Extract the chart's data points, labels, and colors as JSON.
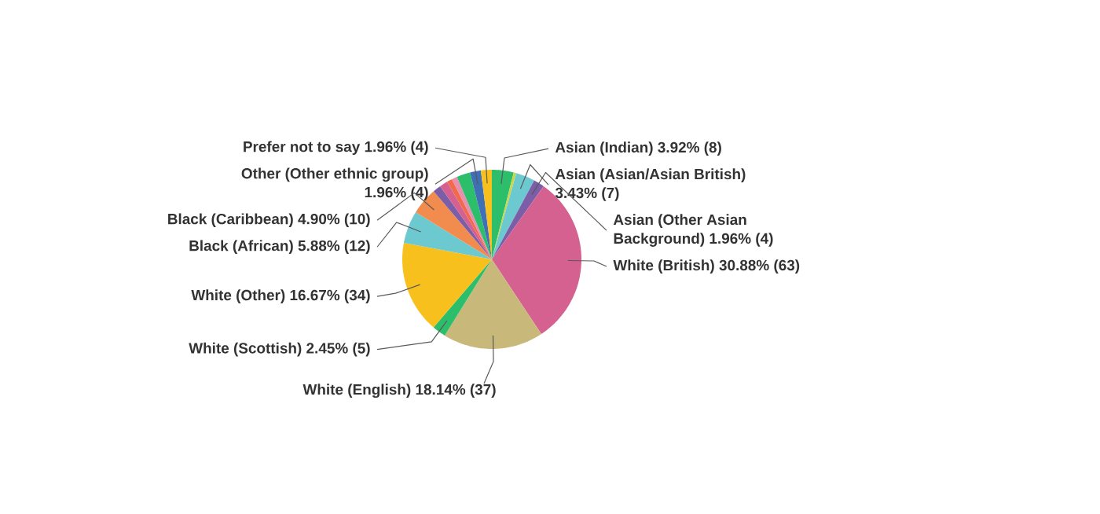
{
  "chart_data": {
    "type": "pie",
    "categories": [
      "Asian (Indian)",
      null,
      "Asian (Asian/Asian British)",
      "Asian (Other Asian Background)",
      "White (British)",
      "White (English)",
      "White (Scottish)",
      "White (Other)",
      "Black (African)",
      "Black (Caribbean)",
      null,
      null,
      null,
      null,
      null,
      "Other (Other ethnic group)",
      "Prefer not to say"
    ],
    "values": [
      3.92,
      0.49,
      3.43,
      1.96,
      30.88,
      18.14,
      2.45,
      16.67,
      5.88,
      4.9,
      1.47,
      1.47,
      0.98,
      0.98,
      2.45,
      1.96,
      1.96
    ],
    "value_labels": [
      "3.92% (8)",
      null,
      "3.43% (7)",
      "1.96% (4)",
      "30.88% (63)",
      "18.14% (37)",
      "2.45% (5)",
      "16.67% (34)",
      "5.88% (12)",
      "4.90% (10)",
      null,
      null,
      null,
      null,
      null,
      "1.96% (4)",
      "1.96% (4)"
    ],
    "colors": [
      "#2dbe6c",
      "#c9d84a",
      "#6cc9d0",
      "#7b5ea7",
      "#d4618f",
      "#c8b97a",
      "#2dbe6c",
      "#f8c01c",
      "#6cc9d0",
      "#f28c4e",
      "#7b5ea7",
      "#d4618f",
      "#f06a4b",
      "#e88fb0",
      "#2dbe6c",
      "#3f6fb5",
      "#f8c01c"
    ]
  }
}
